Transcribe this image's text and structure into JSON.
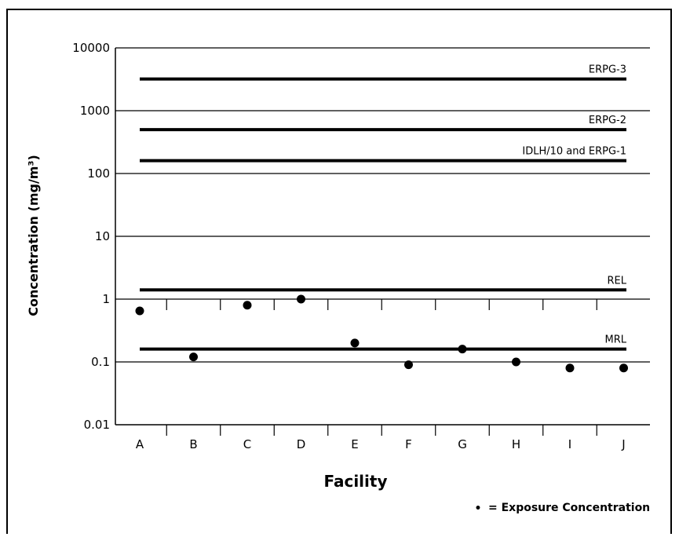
{
  "chart_data": {
    "type": "scatter",
    "xlabel": "Facility",
    "ylabel": "Concentration (mg/m³)",
    "yscale": "log",
    "ylim": [
      0.01,
      10000
    ],
    "yticks": [
      "10000",
      "1000",
      "100",
      "10",
      "1",
      "0.1",
      "0.01"
    ],
    "categories": [
      "A",
      "B",
      "C",
      "D",
      "E",
      "F",
      "G",
      "H",
      "I",
      "J"
    ],
    "series": [
      {
        "name": "Exposure Concentration",
        "values": [
          0.65,
          0.12,
          0.8,
          1.0,
          0.2,
          0.09,
          0.16,
          0.1,
          0.08,
          0.08
        ]
      }
    ],
    "reference_lines": [
      {
        "label": "ERPG-3",
        "value": 3200
      },
      {
        "label": "ERPG-2",
        "value": 500
      },
      {
        "label": "IDLH/10 and ERPG-1",
        "value": 160
      },
      {
        "label": "REL",
        "value": 1.4
      },
      {
        "label": "MRL",
        "value": 0.16
      }
    ],
    "grid": true,
    "legend": {
      "symbol": "•",
      "text": "= Exposure Concentration",
      "position": "bottom-right"
    }
  }
}
